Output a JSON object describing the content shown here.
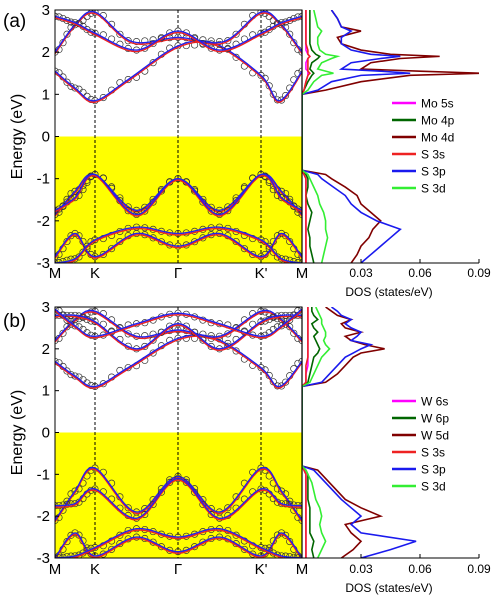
{
  "chart_data": [
    {
      "type": "line",
      "panel_label": "(a)",
      "ylabel": "Energy (eV)",
      "ylim": [
        -3,
        3
      ],
      "yticks": [
        "-3",
        "-2",
        "-1",
        "0",
        "1",
        "2",
        "3"
      ],
      "kpath_labels": [
        "M",
        "K",
        "Γ",
        "K'",
        "M"
      ],
      "dos_xlabel": "DOS (states/eV)",
      "dos_xlim": [
        0,
        0.09
      ],
      "dos_xticks": [
        "0.03",
        "0.06",
        "0.09"
      ],
      "valence_band_shading": true,
      "bands": {
        "conduction": [
          {
            "name": "c1",
            "k": [
              0,
              0.5,
              1,
              1.4,
              2,
              2.45,
              3,
              3.45,
              4
            ],
            "E": [
              1.55,
              1.15,
              0.85,
              1.35,
              2.15,
              2.2,
              1.45,
              0.85,
              1.55
            ]
          },
          {
            "name": "c2",
            "k": [
              0,
              0.5,
              1,
              1.45,
              2,
              2.55,
              3,
              3.5,
              4
            ],
            "E": [
              2.0,
              2.65,
              2.95,
              2.25,
              2.35,
              2.25,
              2.95,
              2.65,
              2.0
            ]
          },
          {
            "name": "c3",
            "k": [
              0,
              0.5,
              1,
              1.5,
              2,
              2.5,
              3,
              3.5,
              4
            ],
            "E": [
              2.85,
              2.7,
              2.45,
              2.05,
              2.5,
              2.05,
              2.45,
              2.7,
              2.85
            ]
          }
        ],
        "valence": [
          {
            "name": "v1",
            "k": [
              0,
              0.5,
              1,
              1.5,
              2,
              2.5,
              3,
              3.5,
              4
            ],
            "E": [
              -1.85,
              -1.3,
              -0.9,
              -1.75,
              -1.0,
              -1.75,
              -0.9,
              -1.3,
              -1.85
            ]
          },
          {
            "name": "v2",
            "k": [
              0,
              0.5,
              1,
              1.5,
              2,
              2.5,
              3,
              3.5,
              4
            ],
            "E": [
              -1.75,
              -1.45,
              -0.9,
              -1.85,
              -1.0,
              -1.85,
              -0.9,
              -1.45,
              -1.75
            ]
          },
          {
            "name": "v3",
            "k": [
              0,
              0.5,
              1,
              1.5,
              2,
              2.5,
              3,
              3.5,
              4
            ],
            "E": [
              -2.85,
              -2.3,
              -2.85,
              -2.3,
              -2.6,
              -2.3,
              -2.85,
              -2.3,
              -2.85
            ]
          },
          {
            "name": "v4",
            "k": [
              0,
              0.5,
              1,
              1.5,
              2,
              2.5,
              3,
              3.5,
              4
            ],
            "E": [
              -3.0,
              -2.9,
              -2.45,
              -2.15,
              -2.3,
              -2.15,
              -2.45,
              -2.9,
              -3.0
            ]
          }
        ]
      },
      "series_colors": {
        "dft": "#2222ee",
        "model": "#ee2222",
        "points": "#333333"
      },
      "dos": {
        "E": [
          -3.0,
          -2.8,
          -2.6,
          -2.4,
          -2.2,
          -2.0,
          -1.8,
          -1.6,
          -1.4,
          -1.2,
          -1.0,
          -0.9,
          -0.8,
          1.0,
          1.1,
          1.3,
          1.45,
          1.5,
          1.55,
          1.6,
          1.75,
          1.85,
          1.9,
          1.95,
          2.05,
          2.2,
          2.35,
          2.5,
          2.6,
          2.8,
          3.0
        ],
        "series": [
          {
            "name": "Mo 5s",
            "color": "#ff00ff",
            "values": [
              0.002,
              0.002,
              0.002,
              0.002,
              0.002,
              0.002,
              0.002,
              0.002,
              0.002,
              0.002,
              0.002,
              0.001,
              0.0,
              0.0,
              0.001,
              0.002,
              0.003,
              0.003,
              0.003,
              0.002,
              0.002,
              0.003,
              0.004,
              0.003,
              0.002,
              0.002,
              0.002,
              0.002,
              0.002,
              0.002,
              0.002
            ]
          },
          {
            "name": "Mo 4p",
            "color": "#006600",
            "values": [
              0.006,
              0.005,
              0.004,
              0.004,
              0.003,
              0.004,
              0.005,
              0.003,
              0.002,
              0.003,
              0.003,
              0.002,
              0.0,
              0.0,
              0.001,
              0.003,
              0.005,
              0.006,
              0.005,
              0.004,
              0.005,
              0.008,
              0.009,
              0.007,
              0.005,
              0.004,
              0.004,
              0.004,
              0.004,
              0.004,
              0.004
            ]
          },
          {
            "name": "Mo 4d",
            "color": "#800000",
            "values": [
              0.025,
              0.028,
              0.03,
              0.034,
              0.036,
              0.04,
              0.035,
              0.03,
              0.028,
              0.022,
              0.015,
              0.012,
              0.0,
              0.0,
              0.012,
              0.03,
              0.055,
              0.092,
              0.06,
              0.03,
              0.035,
              0.05,
              0.07,
              0.045,
              0.03,
              0.02,
              0.018,
              0.03,
              0.02,
              0.018,
              0.015
            ]
          },
          {
            "name": "S 3s",
            "color": "#ee2222",
            "values": [
              0.002,
              0.002,
              0.002,
              0.002,
              0.002,
              0.002,
              0.002,
              0.002,
              0.002,
              0.002,
              0.002,
              0.001,
              0.0,
              0.0,
              0.001,
              0.002,
              0.003,
              0.004,
              0.003,
              0.003,
              0.003,
              0.003,
              0.004,
              0.003,
              0.003,
              0.002,
              0.002,
              0.002,
              0.002,
              0.002,
              0.002
            ]
          },
          {
            "name": "S 3p",
            "color": "#1a1aee",
            "values": [
              0.03,
              0.035,
              0.04,
              0.045,
              0.05,
              0.038,
              0.03,
              0.025,
              0.022,
              0.016,
              0.01,
              0.008,
              0.0,
              0.0,
              0.008,
              0.015,
              0.03,
              0.055,
              0.04,
              0.02,
              0.025,
              0.04,
              0.05,
              0.035,
              0.025,
              0.02,
              0.02,
              0.025,
              0.02,
              0.018,
              0.015
            ]
          },
          {
            "name": "S 3d",
            "color": "#33ee33",
            "values": [
              0.01,
              0.011,
              0.012,
              0.013,
              0.012,
              0.012,
              0.011,
              0.009,
              0.008,
              0.006,
              0.004,
              0.003,
              0.0,
              0.0,
              0.003,
              0.006,
              0.01,
              0.016,
              0.012,
              0.008,
              0.01,
              0.015,
              0.018,
              0.012,
              0.009,
              0.008,
              0.008,
              0.01,
              0.008,
              0.007,
              0.006
            ]
          }
        ]
      }
    },
    {
      "type": "line",
      "panel_label": "(b)",
      "ylabel": "Energy (eV)",
      "ylim": [
        -3,
        3
      ],
      "yticks": [
        "-3",
        "-2",
        "-1",
        "0",
        "1",
        "2",
        "3"
      ],
      "kpath_labels": [
        "M",
        "K",
        "Γ",
        "K'",
        "M"
      ],
      "dos_xlabel": "DOS (states/eV)",
      "dos_xlim": [
        0,
        0.09
      ],
      "dos_xticks": [
        "0.03",
        "0.06",
        "0.09"
      ],
      "valence_band_shading": true,
      "bands": {
        "conduction": [
          {
            "name": "c1",
            "k": [
              0,
              0.5,
              1,
              1.4,
              2,
              2.45,
              3,
              3.45,
              4
            ],
            "E": [
              1.7,
              1.35,
              1.1,
              1.55,
              2.25,
              2.25,
              1.55,
              1.1,
              1.7
            ]
          },
          {
            "name": "c2",
            "k": [
              0,
              0.5,
              1,
              1.5,
              2,
              2.5,
              3,
              3.5,
              4
            ],
            "E": [
              2.2,
              2.7,
              2.9,
              2.3,
              2.45,
              2.3,
              2.9,
              2.7,
              2.2
            ]
          },
          {
            "name": "c3",
            "k": [
              0,
              0.5,
              1,
              1.5,
              2,
              2.5,
              3,
              3.5,
              4
            ],
            "E": [
              2.8,
              2.8,
              2.65,
              2.0,
              2.6,
              2.0,
              2.65,
              2.8,
              2.8
            ]
          },
          {
            "name": "c4",
            "k": [
              0,
              0.5,
              1,
              1.5,
              2,
              2.5,
              3,
              3.5,
              4
            ],
            "E": [
              2.95,
              2.55,
              2.3,
              2.6,
              2.85,
              2.6,
              2.3,
              2.55,
              2.95
            ]
          }
        ],
        "valence": [
          {
            "name": "v1",
            "k": [
              0,
              0.5,
              1,
              1.5,
              2,
              2.5,
              3,
              3.5,
              4
            ],
            "E": [
              -2.1,
              -1.4,
              -0.85,
              -1.9,
              -1.05,
              -1.9,
              -0.85,
              -1.4,
              -2.1
            ]
          },
          {
            "name": "v2",
            "k": [
              0,
              0.5,
              1,
              1.5,
              2,
              2.5,
              3,
              3.5,
              4
            ],
            "E": [
              -1.75,
              -1.7,
              -1.35,
              -2.05,
              -1.1,
              -2.05,
              -1.35,
              -1.7,
              -1.75
            ]
          },
          {
            "name": "v3",
            "k": [
              0,
              0.5,
              1,
              1.5,
              2,
              2.5,
              3,
              3.5,
              4
            ],
            "E": [
              -3.0,
              -2.4,
              -2.95,
              -2.5,
              -2.85,
              -2.5,
              -2.95,
              -2.4,
              -3.0
            ]
          },
          {
            "name": "v4",
            "k": [
              0,
              0.5,
              1,
              1.5,
              2,
              2.5,
              3,
              3.5,
              4
            ],
            "E": [
              -3.0,
              -2.95,
              -2.75,
              -2.3,
              -2.5,
              -2.3,
              -2.75,
              -2.95,
              -3.0
            ]
          }
        ]
      },
      "series_colors": {
        "dft": "#2222ee",
        "model": "#ee2222",
        "points": "#333333"
      },
      "dos": {
        "E": [
          -3.0,
          -2.8,
          -2.6,
          -2.4,
          -2.2,
          -2.0,
          -1.8,
          -1.6,
          -1.4,
          -1.2,
          -1.0,
          -0.9,
          -0.8,
          1.1,
          1.2,
          1.4,
          1.6,
          1.8,
          1.9,
          2.0,
          2.1,
          2.2,
          2.3,
          2.4,
          2.5,
          2.6,
          2.7,
          2.8,
          2.9,
          3.0
        ],
        "series": [
          {
            "name": "W 6s",
            "color": "#ff00ff",
            "values": [
              0.002,
              0.002,
              0.002,
              0.002,
              0.002,
              0.002,
              0.002,
              0.002,
              0.002,
              0.002,
              0.002,
              0.001,
              0.0,
              0.0,
              0.002,
              0.002,
              0.003,
              0.003,
              0.003,
              0.003,
              0.003,
              0.003,
              0.003,
              0.003,
              0.003,
              0.003,
              0.003,
              0.003,
              0.003,
              0.003
            ]
          },
          {
            "name": "W 6p",
            "color": "#006600",
            "values": [
              0.006,
              0.005,
              0.006,
              0.004,
              0.004,
              0.004,
              0.004,
              0.003,
              0.003,
              0.003,
              0.003,
              0.002,
              0.0,
              0.0,
              0.003,
              0.004,
              0.005,
              0.006,
              0.008,
              0.009,
              0.008,
              0.007,
              0.006,
              0.008,
              0.006,
              0.005,
              0.008,
              0.006,
              0.005,
              0.005
            ]
          },
          {
            "name": "W 5d",
            "color": "#800000",
            "values": [
              0.02,
              0.026,
              0.03,
              0.025,
              0.022,
              0.04,
              0.03,
              0.022,
              0.018,
              0.014,
              0.01,
              0.008,
              0.0,
              0.0,
              0.012,
              0.018,
              0.022,
              0.026,
              0.03,
              0.042,
              0.032,
              0.025,
              0.022,
              0.03,
              0.022,
              0.02,
              0.025,
              0.018,
              0.015,
              0.012
            ]
          },
          {
            "name": "S 3s",
            "color": "#ee2222",
            "values": [
              0.002,
              0.002,
              0.002,
              0.002,
              0.002,
              0.002,
              0.002,
              0.002,
              0.002,
              0.002,
              0.002,
              0.001,
              0.0,
              0.0,
              0.002,
              0.002,
              0.002,
              0.003,
              0.003,
              0.003,
              0.003,
              0.003,
              0.003,
              0.003,
              0.003,
              0.003,
              0.003,
              0.003,
              0.003,
              0.003
            ]
          },
          {
            "name": "S 3p",
            "color": "#1a1aee",
            "values": [
              0.03,
              0.045,
              0.058,
              0.03,
              0.025,
              0.03,
              0.025,
              0.02,
              0.016,
              0.012,
              0.008,
              0.006,
              0.0,
              0.0,
              0.01,
              0.014,
              0.018,
              0.022,
              0.026,
              0.03,
              0.035,
              0.025,
              0.028,
              0.03,
              0.025,
              0.022,
              0.025,
              0.02,
              0.018,
              0.015
            ]
          },
          {
            "name": "S 3d",
            "color": "#33ee33",
            "values": [
              0.008,
              0.01,
              0.012,
              0.01,
              0.009,
              0.01,
              0.009,
              0.007,
              0.006,
              0.005,
              0.003,
              0.002,
              0.0,
              0.0,
              0.004,
              0.006,
              0.008,
              0.01,
              0.012,
              0.014,
              0.012,
              0.011,
              0.012,
              0.012,
              0.011,
              0.01,
              0.01,
              0.009,
              0.008,
              0.007
            ]
          }
        ]
      }
    }
  ]
}
